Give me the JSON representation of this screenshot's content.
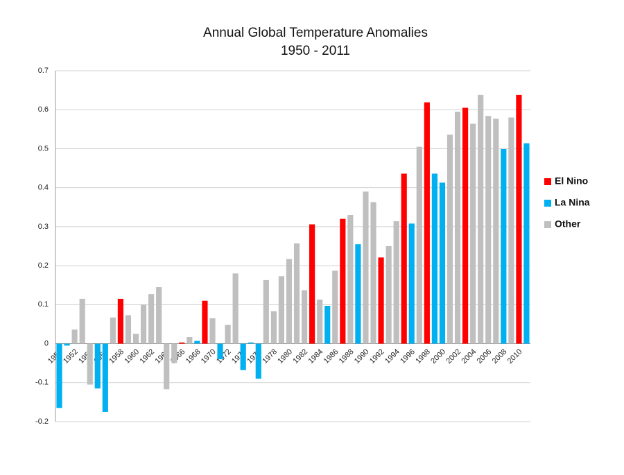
{
  "chart_data": {
    "type": "bar",
    "title": "Annual Global Temperature Anomalies",
    "subtitle": "1950 - 2011",
    "categories": [
      "1950",
      null,
      "1952",
      null,
      "1954",
      null,
      "1956",
      null,
      "1958",
      null,
      "1960",
      null,
      "1962",
      null,
      "1964",
      null,
      "1966",
      null,
      "1968",
      null,
      "1970",
      null,
      "1972",
      null,
      "1974",
      null,
      "1976",
      null,
      "1978",
      null,
      "1980",
      null,
      "1982",
      null,
      "1984",
      null,
      "1986",
      null,
      "1988",
      null,
      "1990",
      null,
      "1992",
      null,
      "1994",
      null,
      "1996",
      null,
      "1998",
      null,
      "2000",
      null,
      "2002",
      null,
      "2004",
      null,
      "2006",
      null,
      "2008",
      null,
      "2010",
      null
    ],
    "series": [
      {
        "name": "El Nino",
        "color": "#ff0000",
        "values": [
          null,
          null,
          null,
          null,
          null,
          null,
          null,
          null,
          0.115,
          null,
          null,
          null,
          null,
          null,
          null,
          null,
          0.003,
          null,
          null,
          0.11,
          null,
          null,
          null,
          null,
          null,
          null,
          null,
          null,
          null,
          null,
          null,
          null,
          null,
          0.306,
          null,
          null,
          null,
          0.32,
          null,
          null,
          null,
          null,
          0.221,
          null,
          null,
          0.436,
          null,
          null,
          0.619,
          null,
          null,
          null,
          null,
          0.605,
          null,
          null,
          null,
          null,
          null,
          null,
          0.638,
          null
        ]
      },
      {
        "name": "La Nina",
        "color": "#00b0f0",
        "values": [
          -0.165,
          -0.005,
          null,
          null,
          null,
          -0.115,
          -0.175,
          null,
          null,
          null,
          null,
          null,
          null,
          null,
          null,
          null,
          null,
          null,
          0.007,
          null,
          null,
          -0.04,
          null,
          null,
          -0.068,
          0.003,
          -0.09,
          null,
          null,
          null,
          null,
          null,
          null,
          null,
          null,
          0.097,
          null,
          null,
          null,
          0.255,
          null,
          null,
          null,
          null,
          null,
          null,
          0.308,
          null,
          null,
          0.436,
          0.413,
          null,
          null,
          null,
          null,
          null,
          null,
          null,
          0.499,
          null,
          null,
          0.514
        ]
      },
      {
        "name": "Other",
        "color": "#bfbfbf",
        "values": [
          null,
          null,
          0.036,
          0.115,
          -0.105,
          null,
          null,
          0.067,
          null,
          0.073,
          0.025,
          0.1,
          0.127,
          0.145,
          -0.117,
          -0.05,
          null,
          0.017,
          null,
          null,
          0.065,
          null,
          0.048,
          0.18,
          null,
          null,
          null,
          0.163,
          0.083,
          0.173,
          0.217,
          0.257,
          0.137,
          null,
          0.113,
          null,
          0.187,
          null,
          0.33,
          null,
          0.39,
          0.363,
          null,
          0.25,
          0.314,
          null,
          null,
          0.505,
          null,
          null,
          null,
          0.536,
          0.595,
          null,
          0.564,
          0.638,
          0.584,
          0.577,
          null,
          0.58,
          null,
          null
        ]
      }
    ],
    "ylim": [
      -0.2,
      0.7
    ],
    "yticks": [
      -0.2,
      -0.1,
      0,
      0.1,
      0.2,
      0.3,
      0.4,
      0.5,
      0.6,
      0.7
    ],
    "grid": true,
    "legend": "right"
  }
}
